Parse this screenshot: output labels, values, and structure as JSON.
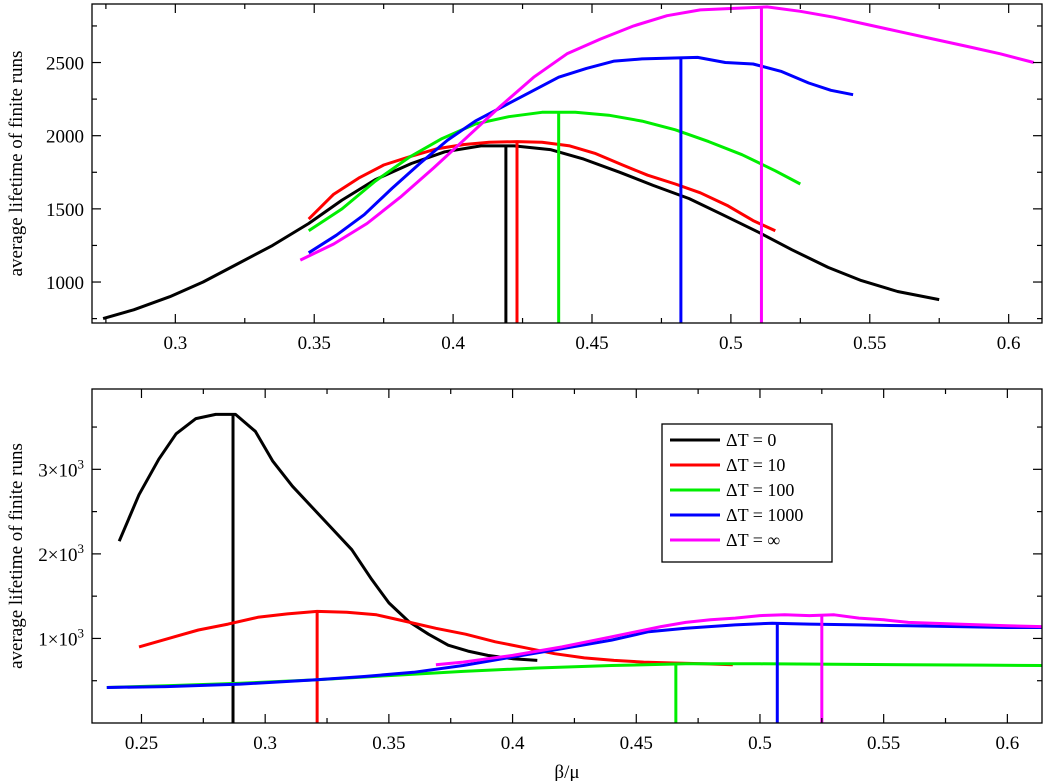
{
  "chart_data": [
    {
      "type": "line",
      "panel": "top",
      "title": "",
      "xlabel": "",
      "ylabel": "average lifetime of finite runs",
      "xlim": [
        0.27,
        0.612
      ],
      "ylim": [
        720,
        2900
      ],
      "xticks": [
        0.3,
        0.35,
        0.4,
        0.45,
        0.5,
        0.55,
        0.6
      ],
      "xtick_labels": [
        "0.3",
        "0.35",
        "0.4",
        "0.45",
        "0.5",
        "0.55",
        "0.6"
      ],
      "yticks": [
        1000,
        1500,
        2000,
        2500
      ],
      "ytick_labels": [
        "1000",
        "1500",
        "2000",
        "2500"
      ],
      "grid": false,
      "series": [
        {
          "name": "ΔT = 0",
          "color": "#000000",
          "x": [
            0.274,
            0.285,
            0.298,
            0.31,
            0.322,
            0.335,
            0.348,
            0.36,
            0.372,
            0.385,
            0.397,
            0.41,
            0.422,
            0.435,
            0.447,
            0.46,
            0.472,
            0.485,
            0.497,
            0.51,
            0.522,
            0.535,
            0.547,
            0.56,
            0.575
          ],
          "y": [
            750,
            810,
            900,
            1000,
            1120,
            1250,
            1400,
            1560,
            1700,
            1810,
            1890,
            1930,
            1930,
            1905,
            1840,
            1750,
            1660,
            1570,
            1460,
            1340,
            1220,
            1100,
            1010,
            935,
            880
          ],
          "marker_x": 0.419
        },
        {
          "name": "ΔT = 10",
          "color": "#ff0000",
          "x": [
            0.348,
            0.357,
            0.366,
            0.375,
            0.385,
            0.394,
            0.404,
            0.413,
            0.423,
            0.432,
            0.442,
            0.451,
            0.461,
            0.47,
            0.48,
            0.489,
            0.499,
            0.508,
            0.516
          ],
          "y": [
            1430,
            1600,
            1710,
            1800,
            1860,
            1910,
            1940,
            1955,
            1960,
            1955,
            1930,
            1880,
            1800,
            1730,
            1670,
            1610,
            1520,
            1420,
            1350
          ],
          "marker_x": 0.423
        },
        {
          "name": "ΔT = 100",
          "color": "#00ee00",
          "x": [
            0.348,
            0.36,
            0.372,
            0.384,
            0.396,
            0.408,
            0.42,
            0.432,
            0.444,
            0.456,
            0.468,
            0.48,
            0.492,
            0.504,
            0.516,
            0.525
          ],
          "y": [
            1350,
            1500,
            1690,
            1850,
            1980,
            2080,
            2130,
            2160,
            2160,
            2140,
            2100,
            2040,
            1960,
            1870,
            1760,
            1670
          ],
          "marker_x": 0.438
        },
        {
          "name": "ΔT = 1000",
          "color": "#0000ff",
          "x": [
            0.348,
            0.358,
            0.368,
            0.378,
            0.388,
            0.398,
            0.408,
            0.418,
            0.428,
            0.438,
            0.448,
            0.458,
            0.468,
            0.478,
            0.488,
            0.498,
            0.508,
            0.518,
            0.528,
            0.536,
            0.544
          ],
          "y": [
            1200,
            1320,
            1460,
            1640,
            1810,
            1970,
            2100,
            2200,
            2300,
            2400,
            2460,
            2510,
            2525,
            2530,
            2535,
            2500,
            2490,
            2440,
            2360,
            2310,
            2280
          ],
          "marker_x": 0.482
        },
        {
          "name": "ΔT = ∞",
          "color": "#ff00ff",
          "x": [
            0.345,
            0.357,
            0.369,
            0.381,
            0.393,
            0.405,
            0.417,
            0.429,
            0.441,
            0.453,
            0.465,
            0.477,
            0.489,
            0.501,
            0.513,
            0.525,
            0.537,
            0.549,
            0.561,
            0.573,
            0.585,
            0.597,
            0.609
          ],
          "y": [
            1150,
            1260,
            1400,
            1580,
            1780,
            1990,
            2200,
            2400,
            2560,
            2660,
            2750,
            2820,
            2860,
            2870,
            2880,
            2850,
            2810,
            2760,
            2710,
            2660,
            2610,
            2560,
            2500
          ],
          "marker_x": 0.511
        }
      ]
    },
    {
      "type": "line",
      "panel": "bottom",
      "title": "",
      "xlabel": "β/μ",
      "ylabel": "average lifetime of finite runs",
      "xlim": [
        0.23,
        0.614
      ],
      "ylim": [
        0,
        3950
      ],
      "xticks": [
        0.25,
        0.3,
        0.35,
        0.4,
        0.45,
        0.5,
        0.55,
        0.6
      ],
      "xtick_labels": [
        "0.25",
        "0.3",
        "0.35",
        "0.4",
        "0.45",
        "0.5",
        "0.55",
        "0.6"
      ],
      "yticks": [
        1000,
        2000,
        3000
      ],
      "ytick_labels": [
        {
          "base": "1×10",
          "exp": "3"
        },
        {
          "base": "2×10",
          "exp": "3"
        },
        {
          "base": "3×10",
          "exp": "3"
        }
      ],
      "grid": false,
      "legend": {
        "position": "top-right",
        "entries": [
          "ΔT = 0",
          "ΔT = 10",
          "ΔT = 100",
          "ΔT = 1000",
          "ΔT = ∞"
        ]
      },
      "series": [
        {
          "name": "ΔT = 0",
          "color": "#000000",
          "x": [
            0.241,
            0.249,
            0.257,
            0.264,
            0.272,
            0.28,
            0.288,
            0.296,
            0.303,
            0.311,
            0.319,
            0.327,
            0.335,
            0.343,
            0.35,
            0.358,
            0.366,
            0.374,
            0.382,
            0.39,
            0.4,
            0.41
          ],
          "y": [
            2150,
            2700,
            3120,
            3420,
            3600,
            3650,
            3650,
            3450,
            3100,
            2800,
            2550,
            2300,
            2050,
            1700,
            1420,
            1200,
            1050,
            920,
            850,
            800,
            760,
            740
          ],
          "marker_x": 0.287
        },
        {
          "name": "ΔT = 10",
          "color": "#ff0000",
          "x": [
            0.249,
            0.261,
            0.273,
            0.285,
            0.297,
            0.309,
            0.321,
            0.333,
            0.345,
            0.357,
            0.369,
            0.381,
            0.393,
            0.405,
            0.417,
            0.429,
            0.441,
            0.453,
            0.465,
            0.477,
            0.489
          ],
          "y": [
            900,
            1000,
            1100,
            1170,
            1250,
            1290,
            1320,
            1310,
            1280,
            1200,
            1120,
            1050,
            960,
            890,
            820,
            770,
            740,
            720,
            710,
            700,
            690
          ],
          "marker_x": 0.321
        },
        {
          "name": "ΔT = 100",
          "color": "#00ee00",
          "x": [
            0.236,
            0.26,
            0.29,
            0.32,
            0.35,
            0.38,
            0.41,
            0.44,
            0.47,
            0.5,
            0.53,
            0.56,
            0.59,
            0.614
          ],
          "y": [
            420,
            440,
            470,
            510,
            560,
            610,
            650,
            680,
            700,
            700,
            695,
            690,
            685,
            680
          ],
          "marker_x": 0.466
        },
        {
          "name": "ΔT = 1000",
          "color": "#0000ff",
          "x": [
            0.236,
            0.26,
            0.29,
            0.32,
            0.34,
            0.36,
            0.38,
            0.4,
            0.42,
            0.44,
            0.455,
            0.47,
            0.49,
            0.505,
            0.52,
            0.54,
            0.56,
            0.58,
            0.6,
            0.614
          ],
          "y": [
            420,
            430,
            460,
            510,
            550,
            600,
            680,
            780,
            880,
            980,
            1080,
            1120,
            1160,
            1180,
            1170,
            1160,
            1150,
            1140,
            1130,
            1130
          ],
          "marker_x": 0.507
        },
        {
          "name": "ΔT = ∞",
          "color": "#ff00ff",
          "x": [
            0.369,
            0.38,
            0.39,
            0.4,
            0.41,
            0.42,
            0.43,
            0.44,
            0.45,
            0.46,
            0.47,
            0.48,
            0.49,
            0.5,
            0.51,
            0.52,
            0.53,
            0.54,
            0.55,
            0.56,
            0.58,
            0.6,
            0.614
          ],
          "y": [
            690,
            720,
            760,
            800,
            850,
            900,
            960,
            1020,
            1080,
            1140,
            1190,
            1220,
            1240,
            1270,
            1280,
            1270,
            1280,
            1240,
            1220,
            1190,
            1170,
            1150,
            1140
          ],
          "marker_x": 0.525
        }
      ]
    }
  ]
}
